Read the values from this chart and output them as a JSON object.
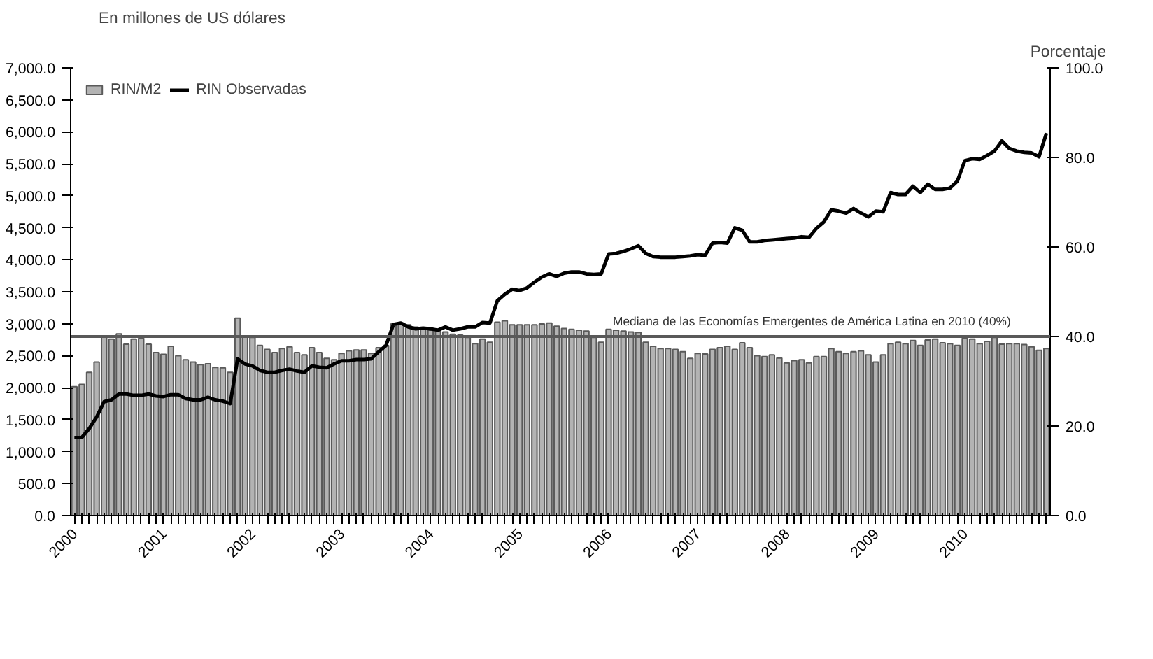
{
  "chart_data": {
    "type": "bar",
    "ylabel": "En millones de US dólares",
    "y2label": "Porcentaje",
    "categories": [
      "2000",
      null,
      null,
      null,
      null,
      null,
      null,
      null,
      null,
      null,
      null,
      null,
      "2001",
      null,
      null,
      null,
      null,
      null,
      null,
      null,
      null,
      null,
      null,
      null,
      "2002",
      null,
      null,
      null,
      null,
      null,
      null,
      null,
      null,
      null,
      null,
      null,
      "2003",
      null,
      null,
      null,
      null,
      null,
      null,
      null,
      null,
      null,
      null,
      null,
      "2004",
      null,
      null,
      null,
      null,
      null,
      null,
      null,
      null,
      null,
      null,
      null,
      "2005",
      null,
      null,
      null,
      null,
      null,
      null,
      null,
      null,
      null,
      null,
      null,
      "2006",
      null,
      null,
      null,
      null,
      null,
      null,
      null,
      null,
      null,
      null,
      null,
      "2007",
      null,
      null,
      null,
      null,
      null,
      null,
      null,
      null,
      null,
      null,
      null,
      "2008",
      null,
      null,
      null,
      null,
      null,
      null,
      null,
      null,
      null,
      null,
      null,
      "2009",
      null,
      null,
      null,
      null,
      null,
      null,
      null,
      null,
      null,
      null,
      null,
      "2010",
      null,
      null,
      null,
      null,
      null,
      null,
      null,
      null,
      null,
      null,
      null
    ],
    "series": [
      {
        "name": "RIN Observadas",
        "type": "line",
        "color": "#000000",
        "values": [
          1220,
          1220,
          1360,
          1540,
          1780,
          1810,
          1900,
          1900,
          1880,
          1880,
          1900,
          1870,
          1860,
          1890,
          1890,
          1830,
          1810,
          1810,
          1850,
          1810,
          1790,
          1750,
          2450,
          2370,
          2340,
          2270,
          2240,
          2240,
          2270,
          2290,
          2260,
          2240,
          2340,
          2320,
          2310,
          2370,
          2420,
          2420,
          2440,
          2440,
          2450,
          2560,
          2660,
          2990,
          3010,
          2950,
          2920,
          2930,
          2920,
          2900,
          2950,
          2900,
          2920,
          2950,
          2950,
          3020,
          3010,
          3360,
          3460,
          3540,
          3520,
          3560,
          3650,
          3730,
          3780,
          3740,
          3790,
          3810,
          3810,
          3780,
          3770,
          3780,
          4090,
          4100,
          4130,
          4170,
          4220,
          4100,
          4050,
          4040,
          4040,
          4040,
          4050,
          4060,
          4080,
          4070,
          4260,
          4270,
          4260,
          4500,
          4460,
          4280,
          4280,
          4300,
          4310,
          4320,
          4330,
          4340,
          4360,
          4350,
          4490,
          4590,
          4780,
          4760,
          4730,
          4800,
          4730,
          4670,
          4760,
          4750,
          5050,
          5020,
          5020,
          5150,
          5050,
          5180,
          5100,
          5100,
          5120,
          5230,
          5550,
          5580,
          5570,
          5630,
          5700,
          5860,
          5740,
          5700,
          5680,
          5670,
          5610,
          5980
        ]
      },
      {
        "name": "RIN/M2",
        "axis": "y2",
        "color": "#b3b3b3",
        "values": [
          28.8,
          29.3,
          32.0,
          34.3,
          40.0,
          39.4,
          40.6,
          38.3,
          39.4,
          39.6,
          38.3,
          36.4,
          36.0,
          37.8,
          35.7,
          34.8,
          34.3,
          33.7,
          33.9,
          33.1,
          33.0,
          32.0,
          44.1,
          40.0,
          39.8,
          38.0,
          37.1,
          36.4,
          37.3,
          37.7,
          36.4,
          35.9,
          37.5,
          36.4,
          35.1,
          34.8,
          36.2,
          36.8,
          37.0,
          37.0,
          36.2,
          37.5,
          38.0,
          42.8,
          43.0,
          42.6,
          42.1,
          41.6,
          41.4,
          41.2,
          41.0,
          40.5,
          40.3,
          39.8,
          38.4,
          39.4,
          38.7,
          43.2,
          43.5,
          42.6,
          42.6,
          42.6,
          42.6,
          42.8,
          43.0,
          42.3,
          41.8,
          41.6,
          41.4,
          41.2,
          39.8,
          38.7,
          41.6,
          41.4,
          41.2,
          41.0,
          40.9,
          38.7,
          37.8,
          37.3,
          37.3,
          37.1,
          36.6,
          35.1,
          36.2,
          36.1,
          37.1,
          37.5,
          37.8,
          37.1,
          38.6,
          37.5,
          35.7,
          35.5,
          35.9,
          35.2,
          34.1,
          34.6,
          34.8,
          34.1,
          35.5,
          35.5,
          37.3,
          36.6,
          36.2,
          36.6,
          36.8,
          35.9,
          34.3,
          35.9,
          38.4,
          38.7,
          38.4,
          39.1,
          38.0,
          39.2,
          39.4,
          38.6,
          38.4,
          38.0,
          39.6,
          39.4,
          38.4,
          38.9,
          39.8,
          38.3,
          38.4,
          38.4,
          38.2,
          37.7,
          36.9,
          37.3
        ]
      }
    ],
    "ylim": [
      0,
      7000
    ],
    "yticks": [
      {
        "value": 0,
        "label": "0.0"
      },
      {
        "value": 500,
        "label": "500.0"
      },
      {
        "value": 1000,
        "label": "1,000.0"
      },
      {
        "value": 1500,
        "label": "1,500.0"
      },
      {
        "value": 2000,
        "label": "2,000.0"
      },
      {
        "value": 2500,
        "label": "2,500.0"
      },
      {
        "value": 3000,
        "label": "3,000.0"
      },
      {
        "value": 3500,
        "label": "3,500.0"
      },
      {
        "value": 4000,
        "label": "4,000.0"
      },
      {
        "value": 4500,
        "label": "4,500.0"
      },
      {
        "value": 5000,
        "label": "5,000.0"
      },
      {
        "value": 5500,
        "label": "5,500.0"
      },
      {
        "value": 6000,
        "label": "6,000.0"
      },
      {
        "value": 6500,
        "label": "6,500.0"
      },
      {
        "value": 7000,
        "label": "7,000.0"
      }
    ],
    "y2lim": [
      0,
      100
    ],
    "y2ticks": [
      {
        "value": 0,
        "label": "0.0"
      },
      {
        "value": 20,
        "label": "20.0"
      },
      {
        "value": 40,
        "label": "40.0"
      },
      {
        "value": 60,
        "label": "60.0"
      },
      {
        "value": 80,
        "label": "80.0"
      },
      {
        "value": 100,
        "label": "100.0"
      }
    ],
    "ref_lines": [
      {
        "axis": "y2",
        "value": 40,
        "label": "Mediana de las Economías Emergentes de América Latina en 2010 (40%)",
        "color": "#595959"
      }
    ],
    "legend": "top left",
    "line_style": "solid"
  }
}
